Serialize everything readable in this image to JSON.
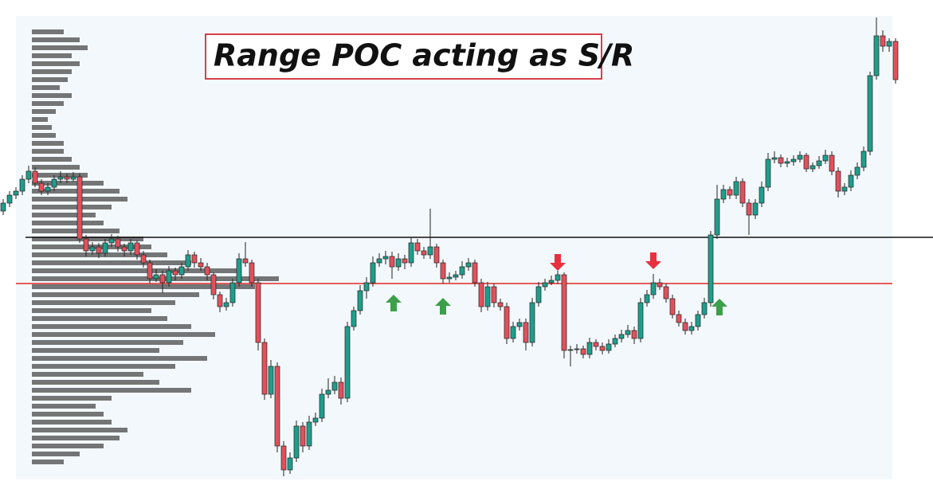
{
  "chart_data": {
    "type": "candlestick",
    "title": "Range POC acting as S/R",
    "ylim": [
      0,
      580
    ],
    "up_color": "#1f9e8c",
    "down_color": "#e2505c",
    "candles": [
      [
        335,
        350,
        330,
        345
      ],
      [
        345,
        360,
        340,
        355
      ],
      [
        355,
        365,
        350,
        360
      ],
      [
        360,
        380,
        355,
        375
      ],
      [
        375,
        392,
        370,
        385
      ],
      [
        385,
        390,
        365,
        370
      ],
      [
        370,
        375,
        355,
        360
      ],
      [
        360,
        370,
        355,
        365
      ],
      [
        365,
        380,
        360,
        375
      ],
      [
        375,
        385,
        370,
        378
      ],
      [
        378,
        382,
        370,
        375
      ],
      [
        375,
        384,
        372,
        378
      ],
      [
        378,
        382,
        295,
        300
      ],
      [
        300,
        305,
        278,
        285
      ],
      [
        285,
        296,
        280,
        290
      ],
      [
        290,
        295,
        276,
        282
      ],
      [
        282,
        300,
        278,
        295
      ],
      [
        295,
        306,
        290,
        300
      ],
      [
        300,
        304,
        284,
        290
      ],
      [
        290,
        294,
        278,
        285
      ],
      [
        285,
        300,
        280,
        295
      ],
      [
        295,
        298,
        274,
        280
      ],
      [
        280,
        285,
        264,
        270
      ],
      [
        270,
        274,
        244,
        250
      ],
      [
        250,
        262,
        246,
        255
      ],
      [
        255,
        260,
        232,
        245
      ],
      [
        245,
        266,
        240,
        260
      ],
      [
        260,
        264,
        248,
        255
      ],
      [
        255,
        270,
        250,
        265
      ],
      [
        265,
        286,
        260,
        280
      ],
      [
        280,
        284,
        264,
        270
      ],
      [
        270,
        276,
        260,
        265
      ],
      [
        265,
        270,
        248,
        255
      ],
      [
        255,
        258,
        224,
        230
      ],
      [
        230,
        234,
        208,
        215
      ],
      [
        215,
        226,
        210,
        220
      ],
      [
        220,
        250,
        215,
        245
      ],
      [
        245,
        282,
        240,
        275
      ],
      [
        275,
        296,
        265,
        270
      ],
      [
        270,
        274,
        240,
        245
      ],
      [
        245,
        250,
        160,
        170
      ],
      [
        170,
        175,
        98,
        105
      ],
      [
        105,
        148,
        100,
        140
      ],
      [
        140,
        145,
        32,
        40
      ],
      [
        40,
        46,
        2,
        10
      ],
      [
        10,
        32,
        5,
        25
      ],
      [
        25,
        72,
        20,
        65
      ],
      [
        65,
        70,
        32,
        40
      ],
      [
        40,
        78,
        35,
        70
      ],
      [
        70,
        82,
        65,
        75
      ],
      [
        75,
        112,
        70,
        105
      ],
      [
        105,
        125,
        100,
        110
      ],
      [
        110,
        128,
        105,
        120
      ],
      [
        120,
        126,
        92,
        100
      ],
      [
        100,
        196,
        95,
        190
      ],
      [
        190,
        215,
        185,
        210
      ],
      [
        210,
        242,
        205,
        235
      ],
      [
        235,
        252,
        225,
        245
      ],
      [
        245,
        278,
        240,
        270
      ],
      [
        270,
        282,
        265,
        275
      ],
      [
        275,
        285,
        268,
        278
      ],
      [
        278,
        284,
        250,
        265
      ],
      [
        265,
        282,
        260,
        275
      ],
      [
        275,
        280,
        262,
        270
      ],
      [
        270,
        302,
        265,
        295
      ],
      [
        295,
        300,
        280,
        285
      ],
      [
        285,
        290,
        275,
        280
      ],
      [
        280,
        338,
        275,
        290
      ],
      [
        290,
        294,
        264,
        270
      ],
      [
        270,
        274,
        244,
        250
      ],
      [
        250,
        258,
        245,
        252
      ],
      [
        252,
        260,
        248,
        255
      ],
      [
        255,
        272,
        250,
        265
      ],
      [
        265,
        276,
        260,
        270
      ],
      [
        270,
        274,
        240,
        245
      ],
      [
        245,
        250,
        208,
        215
      ],
      [
        215,
        246,
        210,
        240
      ],
      [
        240,
        244,
        214,
        220
      ],
      [
        220,
        225,
        210,
        215
      ],
      [
        215,
        220,
        168,
        175
      ],
      [
        175,
        196,
        170,
        190
      ],
      [
        190,
        200,
        185,
        195
      ],
      [
        195,
        200,
        160,
        170
      ],
      [
        170,
        226,
        165,
        220
      ],
      [
        220,
        246,
        215,
        240
      ],
      [
        240,
        250,
        235,
        245
      ],
      [
        245,
        254,
        242,
        248
      ],
      [
        248,
        260,
        244,
        255
      ],
      [
        255,
        258,
        150,
        160
      ],
      [
        160,
        166,
        140,
        161
      ],
      [
        161,
        168,
        156,
        162
      ],
      [
        162,
        166,
        150,
        155
      ],
      [
        155,
        176,
        150,
        170
      ],
      [
        170,
        174,
        160,
        165
      ],
      [
        165,
        170,
        155,
        160
      ],
      [
        160,
        174,
        156,
        168
      ],
      [
        168,
        180,
        164,
        175
      ],
      [
        175,
        186,
        170,
        180
      ],
      [
        180,
        192,
        176,
        185
      ],
      [
        185,
        190,
        168,
        175
      ],
      [
        175,
        226,
        170,
        220
      ],
      [
        220,
        236,
        215,
        230
      ],
      [
        230,
        256,
        225,
        245
      ],
      [
        245,
        250,
        236,
        240
      ],
      [
        240,
        244,
        220,
        225
      ],
      [
        225,
        230,
        200,
        205
      ],
      [
        205,
        210,
        190,
        195
      ],
      [
        195,
        200,
        180,
        185
      ],
      [
        185,
        196,
        180,
        190
      ],
      [
        190,
        210,
        185,
        205
      ],
      [
        205,
        226,
        200,
        220
      ],
      [
        220,
        310,
        215,
        305
      ],
      [
        305,
        368,
        300,
        350
      ],
      [
        350,
        368,
        345,
        362
      ],
      [
        362,
        366,
        350,
        355
      ],
      [
        355,
        378,
        350,
        372
      ],
      [
        372,
        376,
        340,
        345
      ],
      [
        345,
        350,
        305,
        330
      ],
      [
        330,
        350,
        325,
        345
      ],
      [
        345,
        372,
        340,
        365
      ],
      [
        365,
        408,
        360,
        400
      ],
      [
        400,
        410,
        395,
        402
      ],
      [
        402,
        406,
        390,
        395
      ],
      [
        395,
        402,
        390,
        397
      ],
      [
        397,
        405,
        392,
        400
      ],
      [
        400,
        410,
        396,
        405
      ],
      [
        405,
        408,
        384,
        388
      ],
      [
        388,
        396,
        384,
        392
      ],
      [
        392,
        404,
        388,
        398
      ],
      [
        398,
        412,
        394,
        405
      ],
      [
        405,
        410,
        380,
        385
      ],
      [
        385,
        390,
        352,
        360
      ],
      [
        360,
        370,
        355,
        365
      ],
      [
        365,
        386,
        360,
        380
      ],
      [
        380,
        396,
        375,
        390
      ],
      [
        390,
        416,
        385,
        410
      ],
      [
        410,
        510,
        405,
        505
      ],
      [
        505,
        578,
        500,
        555
      ],
      [
        555,
        562,
        535,
        542
      ],
      [
        542,
        552,
        535,
        548
      ],
      [
        548,
        552,
        495,
        500
      ]
    ],
    "profile": {
      "color": "#4a4a4a",
      "levels": [
        20,
        30,
        40,
        50,
        60,
        70,
        80,
        90,
        100,
        110,
        120,
        130,
        140,
        150,
        160,
        170,
        180,
        190,
        200,
        210,
        220,
        230,
        240,
        250,
        260,
        270,
        280,
        290,
        300,
        310,
        320,
        330,
        340,
        350,
        360,
        370,
        380,
        390,
        400,
        410,
        420,
        430,
        440,
        450,
        460,
        470,
        480,
        490,
        500,
        510,
        520,
        530,
        540,
        550,
        560
      ],
      "values": [
        40,
        60,
        90,
        110,
        120,
        100,
        90,
        80,
        100,
        200,
        160,
        140,
        180,
        220,
        160,
        190,
        230,
        200,
        170,
        150,
        180,
        210,
        280,
        310,
        260,
        200,
        170,
        150,
        140,
        110,
        90,
        80,
        100,
        120,
        110,
        90,
        70,
        60,
        50,
        40,
        40,
        30,
        25,
        20,
        30,
        40,
        50,
        35,
        45,
        50,
        60,
        50,
        70,
        60,
        40
      ]
    },
    "lines": [
      {
        "value": 302,
        "color": "#111111"
      },
      {
        "value": 244,
        "color": "#e02828"
      }
    ]
  }
}
